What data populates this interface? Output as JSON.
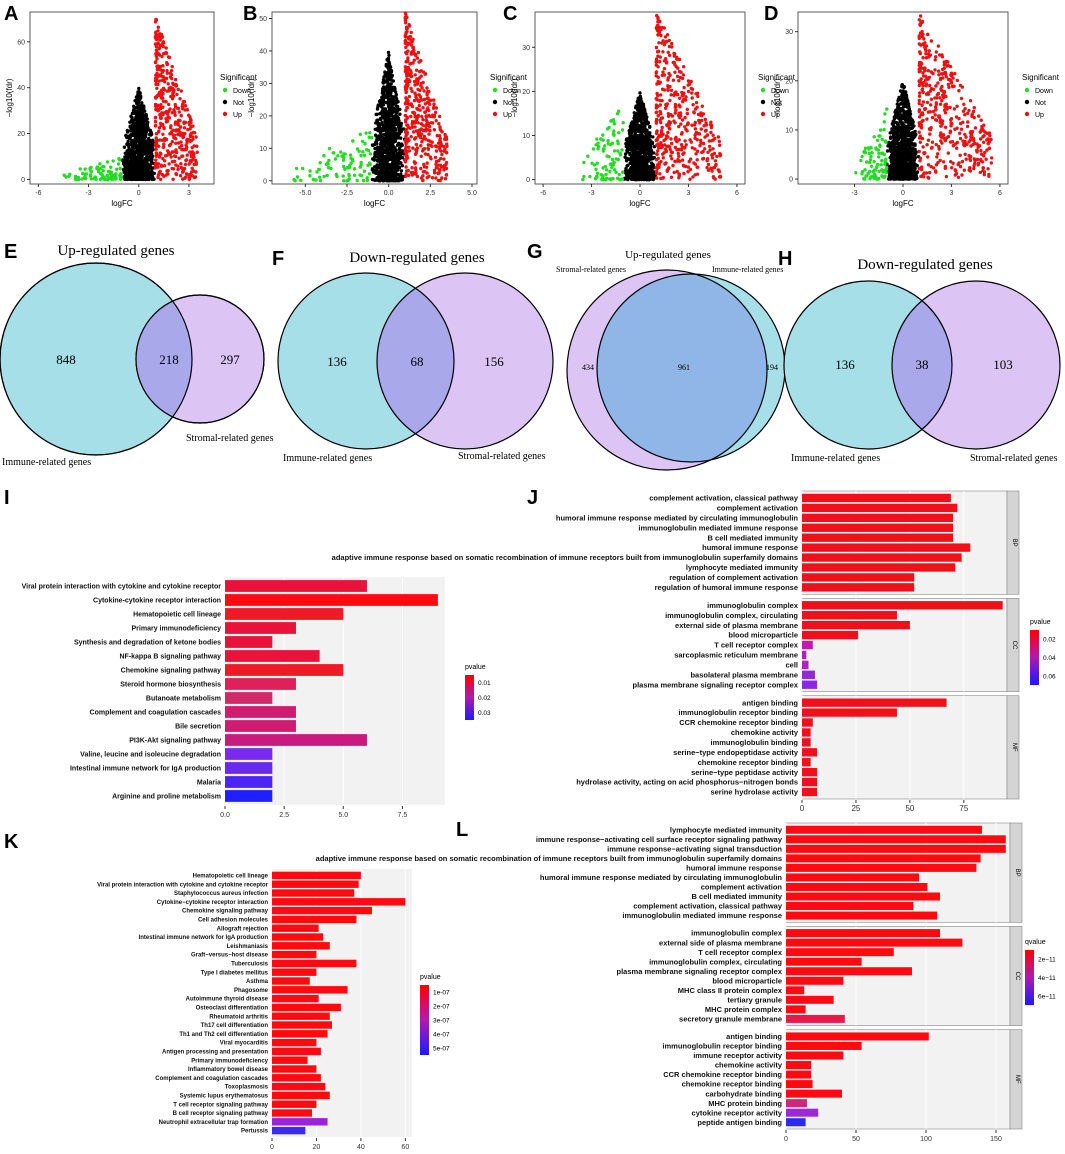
{
  "panel_labels": [
    "A",
    "B",
    "C",
    "D",
    "E",
    "F",
    "G",
    "H",
    "I",
    "J",
    "K",
    "L"
  ],
  "volcano_common": {
    "xlabel": "logFC",
    "ylabel": "−log10(fdr)",
    "legend_title": "Significant",
    "legend_items": [
      {
        "label": "Down",
        "color": "#22dd22"
      },
      {
        "label": "Not",
        "color": "#000000"
      },
      {
        "label": "Up",
        "color": "#ee1111"
      }
    ]
  },
  "venn": [
    {
      "title": "Up-regulated genes",
      "left_label": "Immune-related genes",
      "right_label": "Stromal-related genes",
      "left": "848",
      "both": "218",
      "right": "297"
    },
    {
      "title": "Down-regulated genes",
      "left_label": "Immune-related genes",
      "right_label": "Stromal-related genes",
      "left": "136",
      "both": "68",
      "right": "156"
    },
    {
      "title": "Up-regulated genes",
      "left_label": "Stromal-related genes",
      "right_label": "Immune-related genes",
      "left": "434",
      "both": "961",
      "right": "194"
    },
    {
      "title": "Down-regulated genes",
      "left_label": "Immune-related genes",
      "right_label": "Stromal-related genes",
      "left": "136",
      "both": "38",
      "right": "103"
    }
  ],
  "chart_data": [
    {
      "panel": "A",
      "type": "scatter",
      "xlabel": "logFC",
      "ylabel": "−log10(fdr)",
      "xticks": [
        "-6",
        "-3",
        "0",
        "3"
      ],
      "yticks": [
        "0",
        "20",
        "40",
        "60"
      ],
      "xlim": [
        -6.5,
        4.5
      ],
      "ylim": [
        -2,
        73
      ],
      "clouds": {
        "down": [
          [
            -5.0,
            -1.0
          ],
          [
            0,
            8
          ]
        ],
        "not": [
          [
            -1.0,
            1.0
          ],
          [
            0,
            40
          ]
        ],
        "up": [
          [
            1.0,
            3.5
          ],
          [
            0,
            72
          ]
        ]
      }
    },
    {
      "panel": "B",
      "type": "scatter",
      "xlabel": "logFC",
      "ylabel": "−log10(fdr)",
      "xticks": [
        "-5.0",
        "-2.5",
        "0.0",
        "2.5",
        "5.0"
      ],
      "yticks": [
        "0",
        "10",
        "20",
        "30",
        "40",
        "50"
      ],
      "xlim": [
        -7,
        5.3
      ],
      "ylim": [
        -1,
        52
      ],
      "clouds": {
        "down": [
          [
            -6.0,
            -1.0
          ],
          [
            0,
            15
          ]
        ],
        "not": [
          [
            -1.0,
            1.0
          ],
          [
            0,
            40
          ]
        ],
        "up": [
          [
            1.0,
            3.5
          ],
          [
            0,
            52
          ]
        ]
      }
    },
    {
      "panel": "C",
      "type": "scatter",
      "xlabel": "logFC",
      "ylabel": "−log10(fdr)",
      "xticks": [
        "-6",
        "-3",
        "0",
        "3",
        "6"
      ],
      "yticks": [
        "0",
        "10",
        "20",
        "30"
      ],
      "xlim": [
        -6.5,
        6.5
      ],
      "ylim": [
        -1,
        38
      ],
      "clouds": {
        "down": [
          [
            -4.0,
            -1.0
          ],
          [
            0,
            15
          ]
        ],
        "not": [
          [
            -1.0,
            1.0
          ],
          [
            0,
            20
          ]
        ],
        "up": [
          [
            1.0,
            5.0
          ],
          [
            0,
            38
          ]
        ]
      }
    },
    {
      "panel": "D",
      "type": "scatter",
      "xlabel": "logFC",
      "ylabel": "−log10(fdr)",
      "xticks": [
        "-3",
        "0",
        "3",
        "6"
      ],
      "yticks": [
        "0",
        "10",
        "20",
        "30"
      ],
      "xlim": [
        -6.5,
        6.5
      ],
      "ylim": [
        -1,
        34
      ],
      "clouds": {
        "down": [
          [
            -3.0,
            -1.0
          ],
          [
            0,
            12
          ]
        ],
        "not": [
          [
            -1.0,
            1.0
          ],
          [
            0,
            20
          ]
        ],
        "up": [
          [
            1.0,
            5.5
          ],
          [
            0,
            34
          ]
        ]
      }
    },
    {
      "panel": "I",
      "type": "bar",
      "orientation": "horizontal",
      "xlim": [
        0,
        9.3
      ],
      "xticks": [
        0,
        2.5,
        5,
        7.5
      ],
      "xtick_labels": [
        "0.0",
        "2.5",
        "5.0",
        "7.5"
      ],
      "legend_title": "pvalue",
      "legend_ticks": [
        "0.01",
        "0.02",
        "0.03"
      ],
      "categories": [
        "Viral protein interaction with cytokine and cytokine receptor",
        "Cytokine-cytokine receptor interaction",
        "Hematopoietic cell lineage",
        "Primary immunodeficiency",
        "Synthesis and degradation of ketone bodies",
        "NF-kappa B signaling pathway",
        "Chemokine signaling pathway",
        "Steroid hormone biosynthesis",
        "Butanoate metabolism",
        "Complement and coagulation cascades",
        "Bile secretion",
        "PI3K-Akt signaling pathway",
        "Valine, leucine and isoleucine degradation",
        "Intestinal immune network for IgA production",
        "Malaria",
        "Arginine and proline metabolism"
      ],
      "values": [
        6,
        9,
        5,
        3,
        2,
        4,
        5,
        3,
        2,
        3,
        3,
        6,
        2,
        2,
        2,
        2
      ],
      "colors": [
        "#e8123b",
        "#ff0a10",
        "#ee1a28",
        "#e8123b",
        "#e8123b",
        "#e8123b",
        "#ee1a28",
        "#e0205a",
        "#d52868",
        "#d01c70",
        "#d01c70",
        "#c91a80",
        "#7a2aee",
        "#6a2aee",
        "#4a25f5",
        "#2020ff"
      ]
    },
    {
      "panel": "J",
      "type": "bar",
      "orientation": "horizontal",
      "xlim": [
        0,
        95
      ],
      "xticks": [
        0,
        25,
        50,
        75
      ],
      "xtick_labels": [
        "0",
        "25",
        "50",
        "75"
      ],
      "legend_title": "pvalue",
      "legend_ticks": [
        "0.02",
        "0.04",
        "0.06"
      ],
      "groups": [
        {
          "name": "BP",
          "categories": [
            "complement activation, classical pathway",
            "complement activation",
            "humoral immune response mediated by circulating immunoglobulin",
            "immunoglobulin mediated immune response",
            "B cell mediated immunity",
            "humoral immune response",
            "adaptive immune response based on somatic recombination of immune receptors built from immunoglobulin superfamily domains",
            "lymphocyte mediated immunity",
            "regulation of complement activation",
            "regulation of humoral immune response"
          ],
          "values": [
            69,
            72,
            70,
            70,
            70,
            78,
            74,
            71,
            52,
            52
          ],
          "colors": [
            "#f0101a",
            "#f0101a",
            "#f0101a",
            "#f0101a",
            "#f0101a",
            "#f0101a",
            "#f0101a",
            "#f0101a",
            "#f0101a",
            "#f0101a"
          ]
        },
        {
          "name": "CC",
          "categories": [
            "immunoglobulin complex",
            "immunoglobulin complex, circulating",
            "external side of plasma membrane",
            "blood microparticle",
            "T cell receptor complex",
            "sarcoplasmic reticulum membrane",
            "cell",
            "basolateral plasma membrane",
            "plasma membrane signaling receptor complex"
          ],
          "values": [
            93,
            44,
            50,
            26,
            5,
            2,
            3,
            6,
            7
          ],
          "colors": [
            "#f0101a",
            "#f0101a",
            "#f0101a",
            "#f0101a",
            "#c21aaa",
            "#b020c0",
            "#b020c0",
            "#9028d8",
            "#8a2ae0"
          ]
        },
        {
          "name": "MF",
          "categories": [
            "antigen binding",
            "immunoglobulin receptor binding",
            "CCR chemokine receptor binding",
            "chemokine activity",
            "immunoglobulin binding",
            "serine−type endopeptidase activity",
            "chemokine receptor binding",
            "serine−type peptidase activity",
            "hydrolase activity, acting on acid phosphorus−nitrogen bonds",
            "serine hydrolase activity"
          ],
          "values": [
            67,
            44,
            5,
            4,
            4,
            7,
            4,
            7,
            7,
            7
          ],
          "colors": [
            "#f0101a",
            "#f0101a",
            "#f0101a",
            "#f0101a",
            "#f0101a",
            "#f0101a",
            "#f0101a",
            "#f0101a",
            "#f0101a",
            "#f0101a"
          ]
        }
      ]
    },
    {
      "panel": "K",
      "type": "bar",
      "orientation": "horizontal",
      "xlim": [
        0,
        63
      ],
      "xticks": [
        0,
        20,
        40,
        60
      ],
      "xtick_labels": [
        "0",
        "20",
        "40",
        "60"
      ],
      "legend_title": "pvalue",
      "legend_ticks": [
        "1e-07",
        "2e-07",
        "3e-07",
        "4e-07",
        "5e-07"
      ],
      "categories": [
        "Hematopoietic cell lineage",
        "Viral protein interaction with cytokine and cytokine receptor",
        "Staphylococcus aureus infection",
        "Cytokine−cytokine receptor interaction",
        "Chemokine signaling pathway",
        "Cell adhesion molecules",
        "Allograft rejection",
        "Intestinal immune network for IgA production",
        "Leishmaniasis",
        "Graft−versus−host disease",
        "Tuberculosis",
        "Type I diabetes mellitus",
        "Asthma",
        "Phagosome",
        "Autoimmune thyroid disease",
        "Osteoclast differentiation",
        "Rheumatoid arthritis",
        "Th17 cell differentiation",
        "Th1 and Th2 cell differentiation",
        "Viral myocarditis",
        "Antigen processing and presentation",
        "Primary immunodeficiency",
        "Inflammatory bowel disease",
        "Complement and coagulation cascades",
        "Toxoplasmosis",
        "Systemic lupus erythematosus",
        "T cell receptor signaling pathway",
        "B cell receptor signaling pathway",
        "Neutrophil extracellular trap formation",
        "Pertussis"
      ],
      "values": [
        40,
        39,
        37,
        60,
        45,
        38,
        21,
        23,
        26,
        20,
        38,
        20,
        17,
        34,
        21,
        31,
        26,
        27,
        25,
        20,
        22,
        16,
        20,
        22,
        24,
        26,
        20,
        18,
        25,
        15
      ],
      "colors": [
        "#ff0a10",
        "#ff0a10",
        "#ff0a10",
        "#ff0a10",
        "#ff0a10",
        "#ff0a10",
        "#ff0a10",
        "#ff0a10",
        "#ff0a10",
        "#ff0a10",
        "#ff0a10",
        "#ff0a10",
        "#ff0a10",
        "#ff0a10",
        "#ff0a10",
        "#ff0a10",
        "#ff0a10",
        "#ff0a10",
        "#ff0a10",
        "#ff0a10",
        "#ff0a10",
        "#ff0a10",
        "#ff0a10",
        "#ff0a10",
        "#ff0a10",
        "#ff0a10",
        "#ff0a10",
        "#ff0a10",
        "#9a24d8",
        "#3a2af5"
      ]
    },
    {
      "panel": "L",
      "type": "bar",
      "orientation": "horizontal",
      "xlim": [
        0,
        160
      ],
      "xticks": [
        0,
        50,
        100,
        150
      ],
      "xtick_labels": [
        "0",
        "50",
        "100",
        "150"
      ],
      "legend_title": "qvalue",
      "legend_ticks": [
        "2e−11",
        "4e−11",
        "6e−11"
      ],
      "groups": [
        {
          "name": "BP",
          "categories": [
            "lymphocyte mediated immunity",
            "immune response−activating cell surface receptor signaling pathway",
            "immune response−activating signal transduction",
            "adaptive immune response based on somatic recombination of immune receptors built from immunoglobulin superfamily domains",
            "humoral immune response",
            "humoral immune response mediated by circulating immunoglobulin",
            "complement activation",
            "B cell mediated immunity",
            "complement activation, classical pathway",
            "immunoglobulin mediated immune response"
          ],
          "values": [
            140,
            157,
            157,
            139,
            136,
            95,
            101,
            110,
            91,
            108
          ],
          "colors": [
            "#ff0a10",
            "#ff0a10",
            "#ff0a10",
            "#ff0a10",
            "#ff0a10",
            "#ff0a10",
            "#ff0a10",
            "#ff0a10",
            "#ff0a10",
            "#ff0a10"
          ]
        },
        {
          "name": "CC",
          "categories": [
            "immunoglobulin complex",
            "external side of plasma membrane",
            "T cell receptor complex",
            "immunoglobulin complex, circulating",
            "plasma membrane signaling receptor complex",
            "blood microparticle",
            "MHC class II protein complex",
            "tertiary granule",
            "MHC protein complex",
            "secretory granule membrane"
          ],
          "values": [
            110,
            126,
            77,
            54,
            90,
            41,
            13,
            34,
            14,
            42
          ],
          "colors": [
            "#ff0a10",
            "#ff0a10",
            "#ff0a10",
            "#ff0a10",
            "#ff0a10",
            "#ff0a10",
            "#ff0a10",
            "#ff0a10",
            "#ff0a10",
            "#e81a4a"
          ]
        },
        {
          "name": "MF",
          "categories": [
            "antigen binding",
            "immunoglobulin receptor binding",
            "immune receptor activity",
            "chemokine activity",
            "CCR chemokine receptor binding",
            "chemokine receptor binding",
            "carbohydrate binding",
            "MHC protein binding",
            "cytokine receptor activity",
            "peptide antigen binding"
          ],
          "values": [
            102,
            54,
            41,
            18,
            18,
            19,
            40,
            15,
            23,
            14
          ],
          "colors": [
            "#ff0a10",
            "#ff0a10",
            "#ff0a10",
            "#ff0a10",
            "#ff0a10",
            "#ff0a10",
            "#ff0a10",
            "#d02878",
            "#9a2ad8",
            "#2a2af8"
          ]
        }
      ]
    }
  ]
}
